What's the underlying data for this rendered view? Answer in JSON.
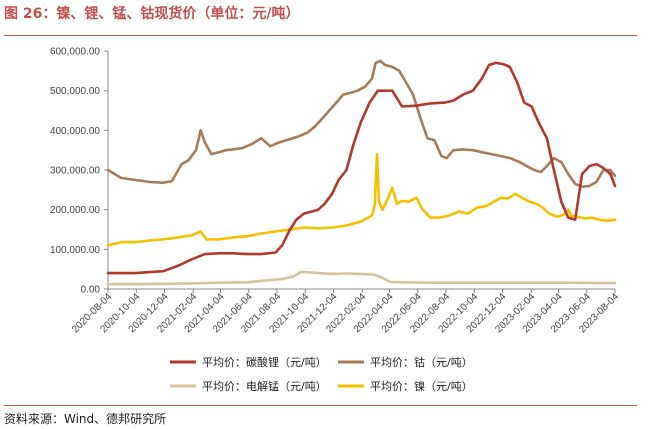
{
  "header": {
    "title": "图 26：镍、锂、锰、钴现货价（单位：元/吨）"
  },
  "footer": {
    "source": "资料来源：Wind、德邦研究所"
  },
  "chart_data": {
    "type": "line",
    "title": "",
    "xlabel": "",
    "ylabel": "",
    "ylim": [
      0,
      600000
    ],
    "yticks": [
      "0.00",
      "100,000.00",
      "200,000.00",
      "300,000.00",
      "400,000.00",
      "500,000.00",
      "600,000.00"
    ],
    "yticks_values": [
      0,
      100000,
      200000,
      300000,
      400000,
      500000,
      600000
    ],
    "xlim": [
      "2020-08-04",
      "2023-08-04"
    ],
    "xticks": [
      "2020-08-04",
      "2020-10-04",
      "2020-12-04",
      "2021-02-04",
      "2021-04-04",
      "2021-06-04",
      "2021-08-04",
      "2021-10-04",
      "2021-12-04",
      "2022-02-04",
      "2022-04-04",
      "2022-06-04",
      "2022-08-04",
      "2022-10-04",
      "2022-12-04",
      "2023-02-04",
      "2023-04-04",
      "2023-06-04",
      "2023-08-04"
    ],
    "grid": false,
    "legend_position": "bottom",
    "series": [
      {
        "name": "平均价：碳酸锂（元/吨）",
        "color": "#b03a2e",
        "x": [
          "2020-08-04",
          "2020-10-01",
          "2020-12-01",
          "2021-01-01",
          "2021-02-01",
          "2021-03-01",
          "2021-04-01",
          "2021-05-01",
          "2021-06-01",
          "2021-07-01",
          "2021-08-01",
          "2021-08-15",
          "2021-09-01",
          "2021-09-15",
          "2021-10-01",
          "2021-11-01",
          "2021-11-15",
          "2021-12-01",
          "2021-12-15",
          "2022-01-01",
          "2022-01-15",
          "2022-02-01",
          "2022-02-20",
          "2022-03-10",
          "2022-03-25",
          "2022-04-10",
          "2022-05-01",
          "2022-06-01",
          "2022-07-01",
          "2022-08-01",
          "2022-08-20",
          "2022-09-10",
          "2022-10-01",
          "2022-10-20",
          "2022-11-05",
          "2022-11-20",
          "2022-12-05",
          "2022-12-20",
          "2023-01-05",
          "2023-01-20",
          "2023-02-05",
          "2023-02-20",
          "2023-03-10",
          "2023-03-25",
          "2023-04-10",
          "2023-04-25",
          "2023-05-10",
          "2023-05-25",
          "2023-06-10",
          "2023-06-25",
          "2023-07-10",
          "2023-07-25",
          "2023-08-04"
        ],
        "values": [
          40000,
          40000,
          45000,
          58000,
          75000,
          88000,
          90000,
          90000,
          88000,
          88000,
          92000,
          110000,
          150000,
          175000,
          190000,
          200000,
          215000,
          240000,
          275000,
          300000,
          360000,
          420000,
          470000,
          500000,
          500000,
          500000,
          460000,
          462000,
          468000,
          470000,
          475000,
          490000,
          500000,
          530000,
          565000,
          570000,
          567000,
          560000,
          520000,
          470000,
          460000,
          420000,
          380000,
          300000,
          220000,
          180000,
          175000,
          290000,
          310000,
          315000,
          305000,
          290000,
          260000
        ]
      },
      {
        "name": "平均价：钴（元/吨）",
        "color": "#a67c5a",
        "x": [
          "2020-08-04",
          "2020-09-01",
          "2020-10-01",
          "2020-11-01",
          "2020-12-01",
          "2020-12-20",
          "2021-01-10",
          "2021-01-25",
          "2021-02-10",
          "2021-02-20",
          "2021-03-01",
          "2021-03-15",
          "2021-04-01",
          "2021-04-15",
          "2021-05-01",
          "2021-05-20",
          "2021-06-10",
          "2021-07-01",
          "2021-07-20",
          "2021-08-10",
          "2021-09-01",
          "2021-09-20",
          "2021-10-10",
          "2021-10-25",
          "2021-11-10",
          "2021-11-25",
          "2021-12-10",
          "2021-12-25",
          "2022-01-10",
          "2022-01-25",
          "2022-02-10",
          "2022-02-25",
          "2022-03-05",
          "2022-03-15",
          "2022-03-25",
          "2022-04-10",
          "2022-04-25",
          "2022-05-10",
          "2022-05-25",
          "2022-06-10",
          "2022-06-25",
          "2022-07-10",
          "2022-07-25",
          "2022-08-05",
          "2022-08-20",
          "2022-09-10",
          "2022-10-01",
          "2022-10-20",
          "2022-11-10",
          "2022-12-01",
          "2022-12-20",
          "2023-01-10",
          "2023-01-25",
          "2023-02-10",
          "2023-02-25",
          "2023-03-10",
          "2023-03-25",
          "2023-04-10",
          "2023-04-25",
          "2023-05-10",
          "2023-05-25",
          "2023-06-10",
          "2023-06-25",
          "2023-07-10",
          "2023-07-25",
          "2023-08-04"
        ],
        "values": [
          300000,
          280000,
          275000,
          270000,
          268000,
          272000,
          315000,
          325000,
          350000,
          400000,
          370000,
          340000,
          345000,
          350000,
          352000,
          355000,
          365000,
          380000,
          360000,
          370000,
          378000,
          385000,
          395000,
          410000,
          430000,
          450000,
          470000,
          490000,
          495000,
          500000,
          510000,
          530000,
          570000,
          575000,
          565000,
          560000,
          550000,
          520000,
          490000,
          430000,
          380000,
          375000,
          335000,
          330000,
          350000,
          352000,
          350000,
          345000,
          340000,
          335000,
          330000,
          320000,
          310000,
          300000,
          295000,
          310000,
          330000,
          320000,
          290000,
          265000,
          258000,
          260000,
          270000,
          300000,
          300000,
          285000
        ]
      },
      {
        "name": "平均价：电解锰（元/吨）",
        "color": "#d5c4a1",
        "x": [
          "2020-08-04",
          "2020-10-01",
          "2020-12-01",
          "2021-02-01",
          "2021-04-01",
          "2021-06-01",
          "2021-07-15",
          "2021-08-15",
          "2021-09-10",
          "2021-09-25",
          "2021-10-10",
          "2021-11-01",
          "2021-12-01",
          "2022-01-01",
          "2022-02-01",
          "2022-03-01",
          "2022-03-20",
          "2022-04-05",
          "2022-05-01",
          "2022-07-01",
          "2022-09-01",
          "2022-11-01",
          "2023-01-01",
          "2023-03-01",
          "2023-05-01",
          "2023-07-01",
          "2023-08-04"
        ],
        "values": [
          12000,
          12000,
          13000,
          14000,
          16000,
          17000,
          22000,
          25000,
          32000,
          43000,
          42000,
          40000,
          38000,
          39000,
          38000,
          36000,
          28000,
          18000,
          17000,
          16000,
          16000,
          16000,
          16000,
          16000,
          16000,
          15000,
          15000
        ]
      },
      {
        "name": "平均价：镍（元/吨）",
        "color": "#f5c000",
        "x": [
          "2020-08-04",
          "2020-09-01",
          "2020-10-01",
          "2020-11-01",
          "2020-12-01",
          "2021-01-01",
          "2021-02-01",
          "2021-02-20",
          "2021-03-05",
          "2021-04-01",
          "2021-05-01",
          "2021-06-01",
          "2021-07-01",
          "2021-08-01",
          "2021-09-01",
          "2021-10-01",
          "2021-11-01",
          "2021-12-01",
          "2022-01-01",
          "2022-02-01",
          "2022-02-25",
          "2022-03-03",
          "2022-03-08",
          "2022-03-12",
          "2022-03-20",
          "2022-04-01",
          "2022-04-10",
          "2022-04-20",
          "2022-05-01",
          "2022-05-15",
          "2022-06-01",
          "2022-06-15",
          "2022-07-01",
          "2022-07-20",
          "2022-08-10",
          "2022-09-01",
          "2022-09-20",
          "2022-10-10",
          "2022-11-01",
          "2022-11-15",
          "2022-12-01",
          "2022-12-15",
          "2023-01-01",
          "2023-01-15",
          "2023-02-01",
          "2023-02-15",
          "2023-03-01",
          "2023-03-15",
          "2023-04-01",
          "2023-04-15",
          "2023-04-25",
          "2023-05-01",
          "2023-05-15",
          "2023-06-01",
          "2023-06-15",
          "2023-07-01",
          "2023-07-20",
          "2023-08-04"
        ],
        "values": [
          110000,
          118000,
          118000,
          122000,
          125000,
          130000,
          135000,
          145000,
          125000,
          125000,
          130000,
          133000,
          140000,
          145000,
          150000,
          155000,
          153000,
          155000,
          160000,
          170000,
          185000,
          210000,
          340000,
          220000,
          200000,
          230000,
          255000,
          215000,
          222000,
          220000,
          230000,
          200000,
          180000,
          180000,
          185000,
          195000,
          190000,
          205000,
          210000,
          220000,
          230000,
          228000,
          240000,
          230000,
          220000,
          215000,
          205000,
          190000,
          182000,
          187000,
          200000,
          185000,
          182000,
          178000,
          180000,
          175000,
          172000,
          175000
        ]
      }
    ]
  }
}
